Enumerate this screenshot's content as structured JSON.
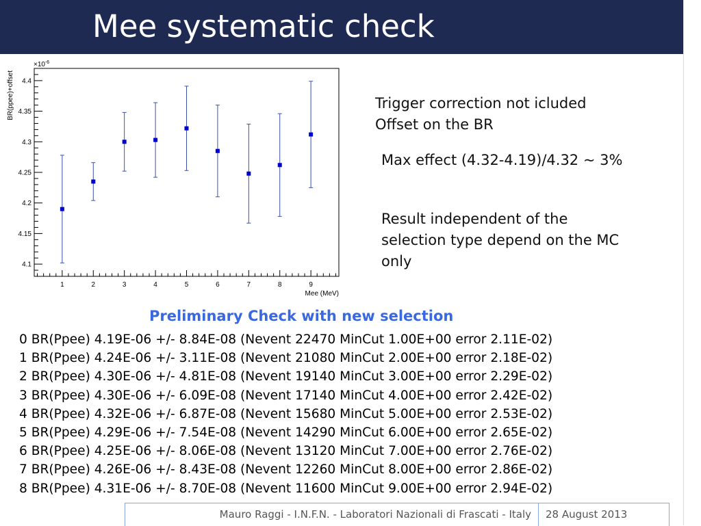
{
  "slide": {
    "title": "Mee systematic check",
    "notes": [
      "Trigger correction not icluded",
      "Offset on the BR",
      "Max effect (4.32-4.19)/4.32 ~ 3%",
      "Result independent of the",
      "selection type depend on the MC",
      "only"
    ],
    "subtitle": "Preliminary Check with new selection",
    "result_lines": [
      "0 BR(Ppee) 4.19E-06 +/- 8.84E-08 (Nevent 22470 MinCut 1.00E+00 error 2.11E-02)",
      "1 BR(Ppee) 4.24E-06 +/- 3.11E-08 (Nevent 21080 MinCut 2.00E+00 error 2.18E-02)",
      "2 BR(Ppee) 4.30E-06 +/- 4.81E-08 (Nevent 19140 MinCut 3.00E+00 error 2.29E-02)",
      "3 BR(Ppee) 4.30E-06 +/- 6.09E-08 (Nevent 17140 MinCut 4.00E+00 error 2.42E-02)",
      "4 BR(Ppee) 4.32E-06 +/- 6.87E-08 (Nevent 15680 MinCut 5.00E+00 error 2.53E-02)",
      "5 BR(Ppee) 4.29E-06 +/- 7.54E-08 (Nevent 14290 MinCut 6.00E+00 error 2.65E-02)",
      "6 BR(Ppee) 4.25E-06 +/- 8.06E-08 (Nevent 13120 MinCut 7.00E+00 error 2.76E-02)",
      "7 BR(Ppee) 4.26E-06 +/- 8.43E-08 (Nevent 12260 MinCut 8.00E+00 error 2.86E-02)",
      "8 BR(Ppee) 4.31E-06 +/- 8.70E-08 (Nevent 11600 MinCut 9.00E+00 error 2.94E-02)"
    ],
    "footer": {
      "author": "Mauro Raggi - I.N.F.N. - Laboratori Nazionali di Frascati - Italy",
      "date": "28 August 2013"
    }
  },
  "colors": {
    "title_bar": "#1f2a52",
    "marker": "#0000cc",
    "error_bar": "#3a4fa8",
    "subtitle": "#3a68e0"
  },
  "chart_data": {
    "type": "scatter",
    "xlabel": "Mee (MeV)",
    "ylabel": "BR(ppee)+offset",
    "y_multiplier": "×10",
    "y_exponent": "-6",
    "xlim": [
      0.1,
      9.9
    ],
    "ylim": [
      4.08,
      4.42
    ],
    "x_ticks": [
      1,
      2,
      3,
      4,
      5,
      6,
      7,
      8,
      9
    ],
    "x_tick_labels": [
      "1",
      "2",
      "3",
      "4",
      "5",
      "6",
      "7",
      "8",
      "9"
    ],
    "y_ticks": [
      4.1,
      4.15,
      4.2,
      4.25,
      4.3,
      4.35,
      4.4
    ],
    "y_tick_labels": [
      "4.1",
      "4.15",
      "4.2",
      "4.25",
      "4.3",
      "4.35",
      "4.4"
    ],
    "grid": false,
    "x": [
      1,
      2,
      3,
      4,
      5,
      6,
      7,
      8,
      9
    ],
    "y": [
      4.19,
      4.235,
      4.3,
      4.303,
      4.322,
      4.285,
      4.248,
      4.262,
      4.312
    ],
    "y_err": [
      0.088,
      0.031,
      0.048,
      0.061,
      0.069,
      0.075,
      0.081,
      0.084,
      0.087
    ]
  }
}
